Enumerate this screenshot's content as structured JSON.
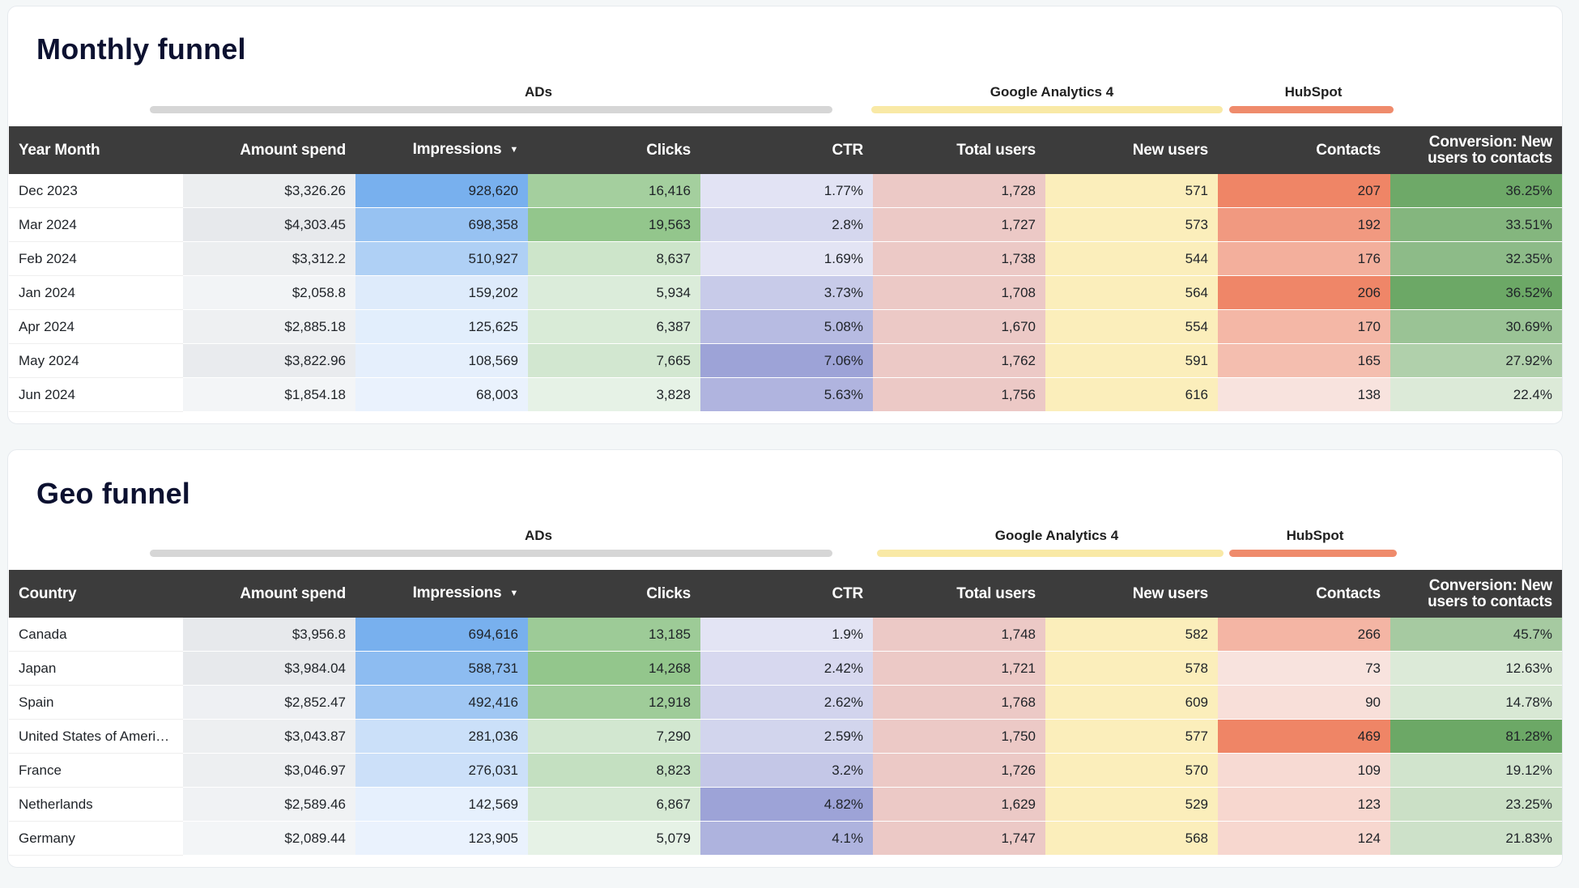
{
  "monthly": {
    "title": "Monthly funnel",
    "groups": {
      "ads": "ADs",
      "ga": "Google Analytics 4",
      "hubspot": "HubSpot"
    },
    "headers": {
      "first": "Year Month",
      "amount": "Amount spend",
      "impressions": "Impressions",
      "clicks": "Clicks",
      "ctr": "CTR",
      "total_users": "Total users",
      "new_users": "New users",
      "contacts": "Contacts",
      "conversion": "Conversion: New users to contacts"
    },
    "rows": [
      {
        "label": "Dec 2023",
        "amount": "$3,326.26",
        "impressions": "928,620",
        "clicks": "16,416",
        "ctr": "1.77%",
        "total_users": "1,728",
        "new_users": "571",
        "contacts": "207",
        "conversion": "36.25%"
      },
      {
        "label": "Mar 2024",
        "amount": "$4,303.45",
        "impressions": "698,358",
        "clicks": "19,563",
        "ctr": "2.8%",
        "total_users": "1,727",
        "new_users": "573",
        "contacts": "192",
        "conversion": "33.51%"
      },
      {
        "label": "Feb 2024",
        "amount": "$3,312.2",
        "impressions": "510,927",
        "clicks": "8,637",
        "ctr": "1.69%",
        "total_users": "1,738",
        "new_users": "544",
        "contacts": "176",
        "conversion": "32.35%"
      },
      {
        "label": "Jan 2024",
        "amount": "$2,058.8",
        "impressions": "159,202",
        "clicks": "5,934",
        "ctr": "3.73%",
        "total_users": "1,708",
        "new_users": "564",
        "contacts": "206",
        "conversion": "36.52%"
      },
      {
        "label": "Apr 2024",
        "amount": "$2,885.18",
        "impressions": "125,625",
        "clicks": "6,387",
        "ctr": "5.08%",
        "total_users": "1,670",
        "new_users": "554",
        "contacts": "170",
        "conversion": "30.69%"
      },
      {
        "label": "May 2024",
        "amount": "$3,822.96",
        "impressions": "108,569",
        "clicks": "7,665",
        "ctr": "7.06%",
        "total_users": "1,762",
        "new_users": "591",
        "contacts": "165",
        "conversion": "27.92%"
      },
      {
        "label": "Jun 2024",
        "amount": "$1,854.18",
        "impressions": "68,003",
        "clicks": "3,828",
        "ctr": "5.63%",
        "total_users": "1,756",
        "new_users": "616",
        "contacts": "138",
        "conversion": "22.4%"
      }
    ]
  },
  "geo": {
    "title": "Geo funnel",
    "groups": {
      "ads": "ADs",
      "ga": "Google Analytics 4",
      "hubspot": "HubSpot"
    },
    "headers": {
      "first": "Country",
      "amount": "Amount spend",
      "impressions": "Impressions",
      "clicks": "Clicks",
      "ctr": "CTR",
      "total_users": "Total users",
      "new_users": "New users",
      "contacts": "Contacts",
      "conversion": "Conversion: New users to contacts"
    },
    "rows": [
      {
        "label": "Canada",
        "amount": "$3,956.8",
        "impressions": "694,616",
        "clicks": "13,185",
        "ctr": "1.9%",
        "total_users": "1,748",
        "new_users": "582",
        "contacts": "266",
        "conversion": "45.7%"
      },
      {
        "label": "Japan",
        "amount": "$3,984.04",
        "impressions": "588,731",
        "clicks": "14,268",
        "ctr": "2.42%",
        "total_users": "1,721",
        "new_users": "578",
        "contacts": "73",
        "conversion": "12.63%"
      },
      {
        "label": "Spain",
        "amount": "$2,852.47",
        "impressions": "492,416",
        "clicks": "12,918",
        "ctr": "2.62%",
        "total_users": "1,768",
        "new_users": "609",
        "contacts": "90",
        "conversion": "14.78%"
      },
      {
        "label": "United States of Ameri…",
        "amount": "$3,043.87",
        "impressions": "281,036",
        "clicks": "7,290",
        "ctr": "2.59%",
        "total_users": "1,750",
        "new_users": "577",
        "contacts": "469",
        "conversion": "81.28%"
      },
      {
        "label": "France",
        "amount": "$3,046.97",
        "impressions": "276,031",
        "clicks": "8,823",
        "ctr": "3.2%",
        "total_users": "1,726",
        "new_users": "570",
        "contacts": "109",
        "conversion": "19.12%"
      },
      {
        "label": "Netherlands",
        "amount": "$2,589.46",
        "impressions": "142,569",
        "clicks": "6,867",
        "ctr": "4.82%",
        "total_users": "1,629",
        "new_users": "529",
        "contacts": "123",
        "conversion": "23.25%"
      },
      {
        "label": "Germany",
        "amount": "$2,089.44",
        "impressions": "123,905",
        "clicks": "5,079",
        "ctr": "4.1%",
        "total_users": "1,747",
        "new_users": "568",
        "contacts": "124",
        "conversion": "21.83%"
      }
    ]
  },
  "heat_colors": {
    "amount": {
      "low": "#f3f5f7",
      "high": "#e7e9ec"
    },
    "impressions": {
      "low": "#eaf2fd",
      "high": "#78b0ee"
    },
    "clicks": {
      "low": "#e6f2e6",
      "high": "#93c68c"
    },
    "ctr": {
      "low": "#e3e4f4",
      "high": "#9da3d7"
    },
    "total_users": {
      "low": "#ecc9c6",
      "high": "#ecc9c6"
    },
    "new_users": {
      "low": "#fbeebb",
      "high": "#fbeebb"
    },
    "contacts": {
      "low": "#f8e3de",
      "high": "#ef8566"
    },
    "conversion": {
      "low": "#dcead8",
      "high": "#6ca866"
    }
  }
}
